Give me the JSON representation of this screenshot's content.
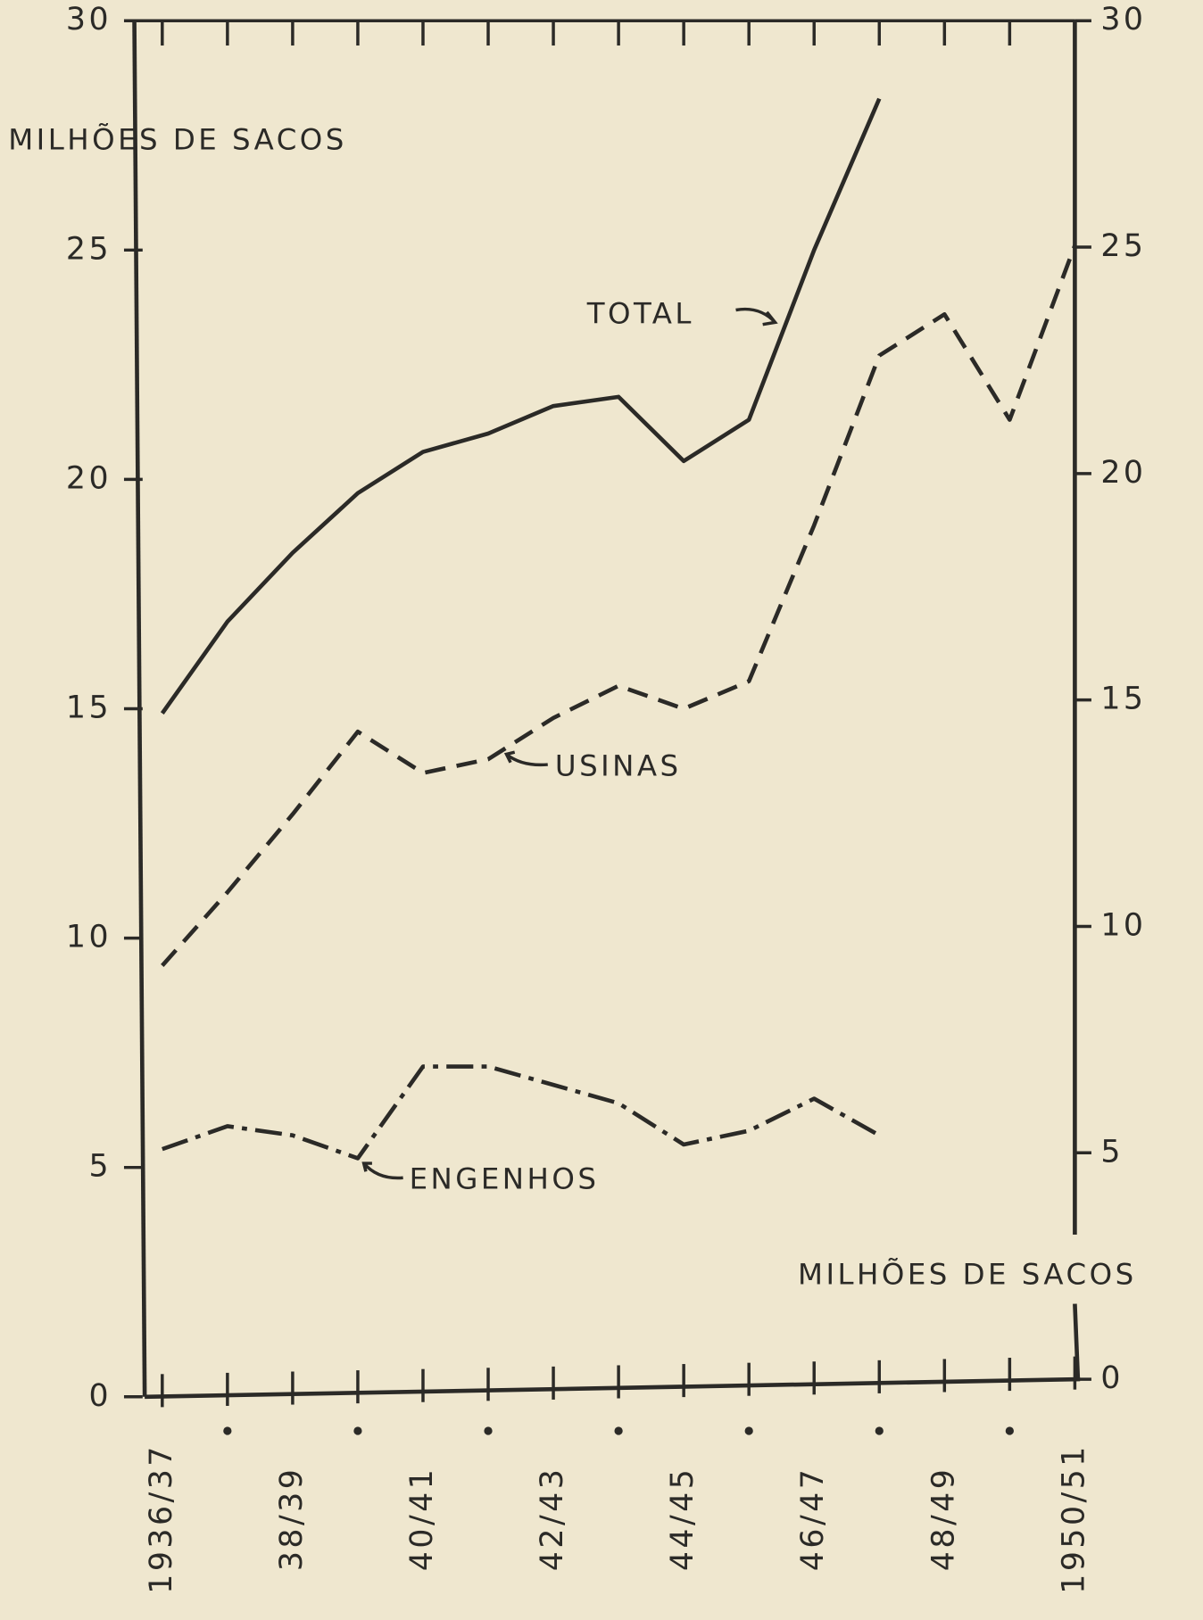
{
  "chart_data": {
    "type": "line",
    "ylabel": "MILHÕES DE SACOS",
    "y2label": "MILHÕES DE SACOS",
    "categories": [
      "1936/37",
      null,
      "38/39",
      null,
      "40/41",
      null,
      "42/43",
      null,
      "44/45",
      null,
      "46/47",
      null,
      "48/49",
      null,
      "1950/51"
    ],
    "series": [
      {
        "name": "TOTAL",
        "color": "#2b2a27",
        "dash": "solid",
        "values": [
          14.9,
          16.9,
          18.4,
          19.7,
          20.6,
          21.0,
          21.6,
          21.8,
          20.4,
          21.3,
          25.0,
          28.3,
          null,
          null,
          null
        ]
      },
      {
        "name": "USINAS",
        "color": "#2b2a27",
        "dash": "dashed",
        "values": [
          9.4,
          11.0,
          12.7,
          14.5,
          13.6,
          13.9,
          14.8,
          15.5,
          15.0,
          15.6,
          19.0,
          22.7,
          23.6,
          21.3,
          25.1
        ]
      },
      {
        "name": "ENGENHOS",
        "color": "#2b2a27",
        "dash": "dashdot",
        "values": [
          5.4,
          5.9,
          5.7,
          5.2,
          7.2,
          7.2,
          6.8,
          6.4,
          5.5,
          5.8,
          6.5,
          5.7,
          null,
          null,
          null
        ]
      }
    ],
    "ylim": [
      0,
      30
    ],
    "yticks": [
      0,
      5,
      10,
      15,
      20,
      25,
      30
    ],
    "y2lim": [
      0,
      30
    ],
    "y2ticks": [
      0,
      5,
      10,
      15,
      20,
      25,
      30
    ]
  }
}
